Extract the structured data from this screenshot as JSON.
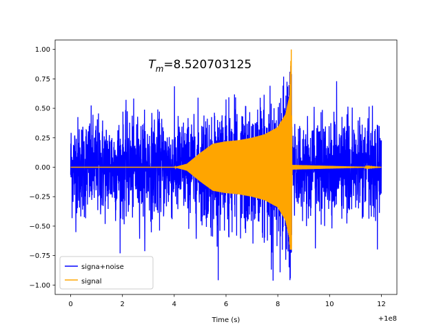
{
  "chart_data": {
    "type": "line",
    "title": "",
    "annotation": {
      "prefix": "T",
      "subscript": "m",
      "value_text": "=8.520703125",
      "x": 3.0,
      "y": 0.84
    },
    "xlabel": "Time (s)",
    "ylabel": "",
    "x_offset_label": "+1e8",
    "xlim": [
      -0.6,
      12.6
    ],
    "ylim": [
      -1.08,
      1.08
    ],
    "xticks": [
      0,
      2,
      4,
      6,
      8,
      10,
      12
    ],
    "xtick_labels": [
      "0",
      "2",
      "4",
      "6",
      "8",
      "10",
      "12"
    ],
    "yticks": [
      -1.0,
      -0.75,
      -0.5,
      -0.25,
      0.0,
      0.25,
      0.5,
      0.75,
      1.0
    ],
    "ytick_labels": [
      "−1.00",
      "−0.75",
      "−0.50",
      "−0.25",
      "0.00",
      "0.25",
      "0.50",
      "0.75",
      "1.00"
    ],
    "grid": false,
    "legend_position": "lower-left",
    "series": [
      {
        "name": "signa+noise",
        "color": "#0000ff",
        "description": "dense noisy signal spanning x 0 to 12, amplitude mostly within ±0.5 with spikes up to ±0.95",
        "x_range": [
          0,
          12
        ],
        "typical_amplitude": 0.5,
        "peak_values": [
          0.93,
          -0.98
        ]
      },
      {
        "name": "signal",
        "color": "#ffa500",
        "description": "chirp: zero until x≈4, envelope grows to ≈0.22 near x=5.7, then rises sharply to peak 1.0 at x≈8.52, then drops to ≈0",
        "envelope_points": [
          [
            0,
            0.0
          ],
          [
            4.0,
            0.0
          ],
          [
            4.5,
            0.03
          ],
          [
            5.0,
            0.12
          ],
          [
            5.5,
            0.2
          ],
          [
            6.0,
            0.22
          ],
          [
            6.5,
            0.23
          ],
          [
            7.0,
            0.25
          ],
          [
            7.5,
            0.28
          ],
          [
            8.0,
            0.34
          ],
          [
            8.3,
            0.45
          ],
          [
            8.45,
            0.6
          ],
          [
            8.52,
            1.0
          ],
          [
            8.55,
            0.02
          ],
          [
            12.0,
            0.0
          ]
        ],
        "min_value": -0.7
      }
    ]
  }
}
